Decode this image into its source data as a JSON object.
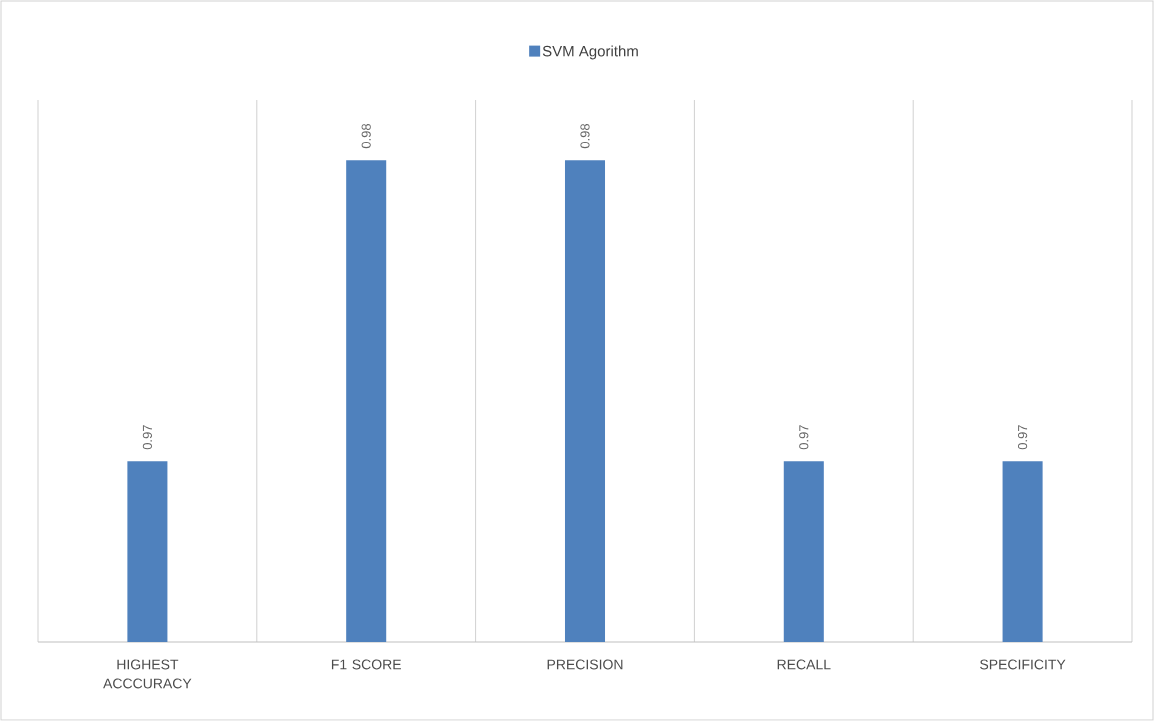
{
  "chart_data": {
    "type": "bar",
    "categories": [
      "HIGHEST ACCCURACY",
      "F1 SCORE",
      "PRECISION",
      "RECALL",
      "SPECIFICITY"
    ],
    "series": [
      {
        "name": "SVM Agorithm",
        "color": "#4f81bd",
        "values": [
          0.97,
          0.98,
          0.98,
          0.97,
          0.97
        ]
      }
    ],
    "ylim": [
      0.964,
      0.982
    ],
    "tick_labels": "x",
    "data_labels": true,
    "grid": "x",
    "legend": "top"
  }
}
